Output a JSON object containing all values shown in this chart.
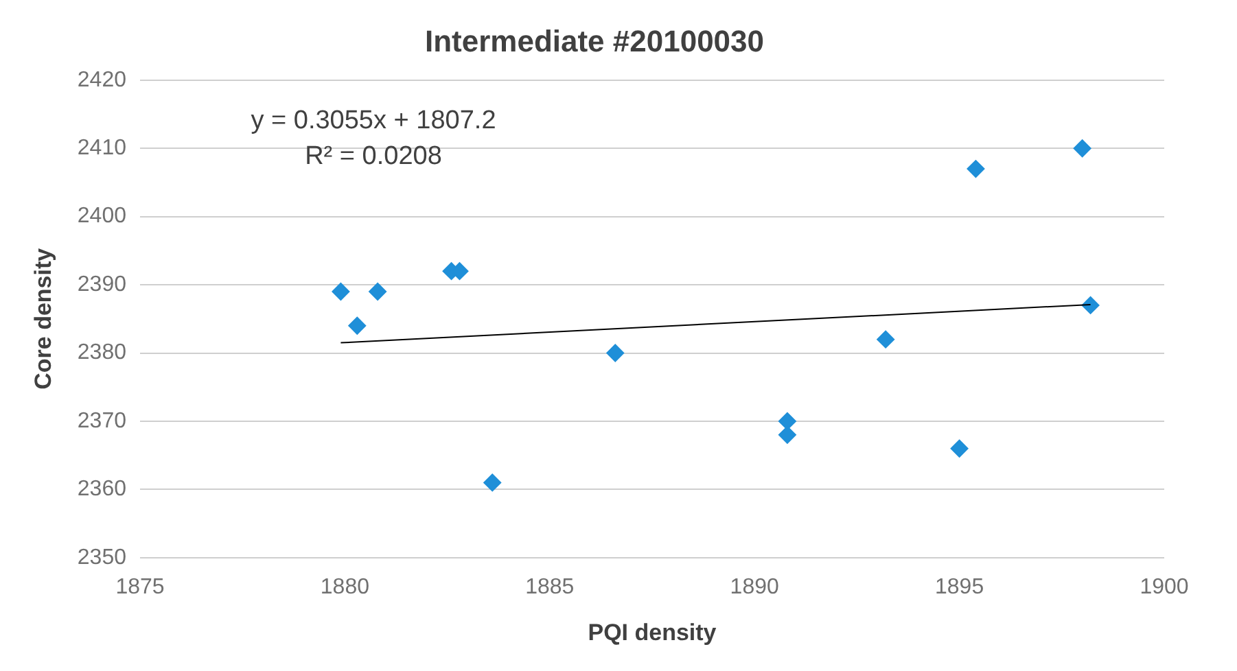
{
  "chart_data": {
    "type": "scatter",
    "title": "Intermediate #20100030",
    "xlabel": "PQI density",
    "ylabel": "Core density",
    "series": [
      {
        "type": "scatter",
        "color": "#1f8fd8",
        "marker": "diamond",
        "x": [
          1879.9,
          1880.3,
          1880.8,
          1882.6,
          1882.8,
          1883.6,
          1886.6,
          1890.8,
          1890.8,
          1893.2,
          1895.0,
          1895.4,
          1898.0,
          1898.2
        ],
        "values": [
          2389,
          2384,
          2389,
          2392,
          2392,
          2361,
          2380,
          2370,
          2368,
          2382,
          2366,
          2407,
          2410,
          2387
        ]
      },
      {
        "type": "line",
        "color": "#000000",
        "marker": "none",
        "x": [
          1879.9,
          1898.2
        ],
        "values": [
          2381.5,
          2387.1
        ]
      }
    ],
    "annotations": [
      "y = 0.3055x + 1807.2",
      "R² = 0.0208"
    ],
    "xlim": [
      1875,
      1900
    ],
    "xticks": [
      1875,
      1880,
      1885,
      1890,
      1895,
      1900
    ],
    "ylim": [
      2350,
      2420
    ],
    "yticks": [
      2350,
      2360,
      2370,
      2380,
      2390,
      2400,
      2410,
      2420
    ],
    "grid": "y",
    "legend": false
  }
}
